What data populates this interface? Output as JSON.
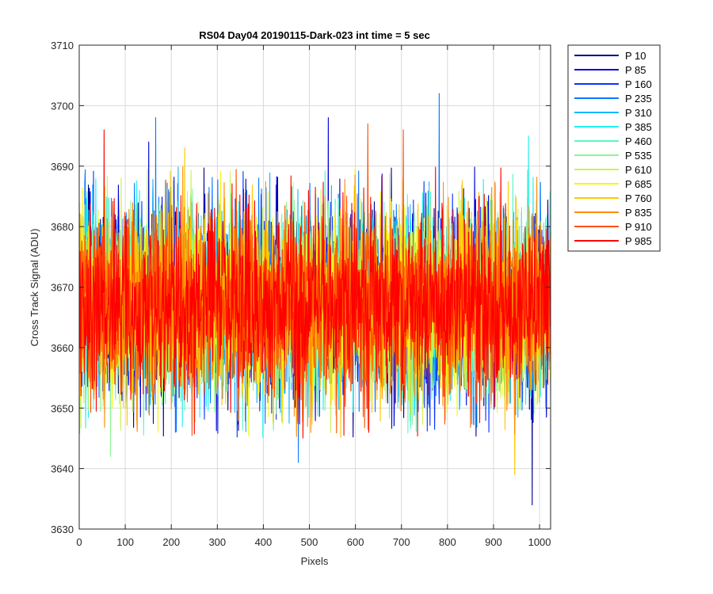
{
  "chart_data": {
    "type": "line",
    "title": "RS04 Day04 20190115-Dark-023 int time = 5 sec",
    "xlabel": "Pixels",
    "ylabel": "Cross Track Signal (ADU)",
    "xlim": [
      0,
      1024
    ],
    "ylim": [
      3630,
      3710
    ],
    "xticks": [
      0,
      100,
      200,
      300,
      400,
      500,
      600,
      700,
      800,
      900,
      1000
    ],
    "yticks": [
      3630,
      3640,
      3650,
      3660,
      3670,
      3680,
      3690,
      3700,
      3710
    ],
    "grid": true,
    "legend_position": "outside-top-right",
    "series": [
      {
        "name": "P 10",
        "color": "#00008f"
      },
      {
        "name": "P 85",
        "color": "#0000d6"
      },
      {
        "name": "P 160",
        "color": "#0a32ff"
      },
      {
        "name": "P 235",
        "color": "#0a78ff"
      },
      {
        "name": "P 310",
        "color": "#14b4ff"
      },
      {
        "name": "P 385",
        "color": "#1ef0f0"
      },
      {
        "name": "P 460",
        "color": "#5af5c8"
      },
      {
        "name": "P 535",
        "color": "#8cf596"
      },
      {
        "name": "P 610",
        "color": "#c8f550"
      },
      {
        "name": "P 685",
        "color": "#f5f514"
      },
      {
        "name": "P 760",
        "color": "#ffc800"
      },
      {
        "name": "P 835",
        "color": "#ff8c00"
      },
      {
        "name": "P 910",
        "color": "#ff5000"
      },
      {
        "name": "P 985",
        "color": "#ff0000"
      }
    ],
    "spikes": [
      {
        "series": "P 985",
        "x": 53,
        "y": 3696
      },
      {
        "series": "P 235",
        "x": 165,
        "y": 3698
      },
      {
        "series": "P 85",
        "x": 150,
        "y": 3694
      },
      {
        "series": "P 760",
        "x": 228,
        "y": 3693
      },
      {
        "series": "P 85",
        "x": 540,
        "y": 3698
      },
      {
        "series": "P 910",
        "x": 626,
        "y": 3697
      },
      {
        "series": "P 910",
        "x": 703,
        "y": 3696
      },
      {
        "series": "P 235",
        "x": 781,
        "y": 3702
      },
      {
        "series": "P 385",
        "x": 975,
        "y": 3695
      },
      {
        "series": "P 10",
        "x": 983,
        "y": 3634
      },
      {
        "series": "P 760",
        "x": 945,
        "y": 3639
      },
      {
        "series": "P 535",
        "x": 67,
        "y": 3642
      },
      {
        "series": "P 235",
        "x": 475,
        "y": 3641
      }
    ],
    "noise": {
      "mean": 3667,
      "typical_min": 3645,
      "typical_max": 3690
    }
  }
}
